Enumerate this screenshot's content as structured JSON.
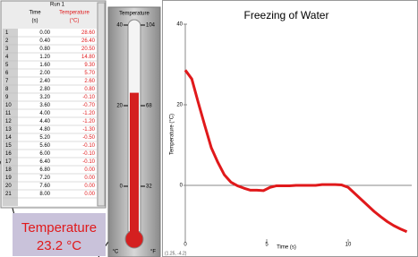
{
  "table": {
    "run": "Run 1",
    "columns": [
      {
        "name": "Time",
        "unit": "(s)"
      },
      {
        "name": "Temperature",
        "unit": "(°C)"
      }
    ],
    "rows": [
      [
        "1",
        "0.00",
        "28.60"
      ],
      [
        "2",
        "0.40",
        "26.40"
      ],
      [
        "3",
        "0.80",
        "20.50"
      ],
      [
        "4",
        "1.20",
        "14.80"
      ],
      [
        "5",
        "1.60",
        "9.30"
      ],
      [
        "6",
        "2.00",
        "5.70"
      ],
      [
        "7",
        "2.40",
        "2.60"
      ],
      [
        "8",
        "2.80",
        "0.80"
      ],
      [
        "9",
        "3.20",
        "-0.10"
      ],
      [
        "10",
        "3.60",
        "-0.70"
      ],
      [
        "11",
        "4.00",
        "-1.20"
      ],
      [
        "12",
        "4.40",
        "-1.20"
      ],
      [
        "13",
        "4.80",
        "-1.30"
      ],
      [
        "14",
        "5.20",
        "-0.50"
      ],
      [
        "15",
        "5.60",
        "-0.10"
      ],
      [
        "16",
        "6.00",
        "-0.10"
      ],
      [
        "17",
        "6.40",
        "-0.10"
      ],
      [
        "18",
        "6.80",
        "0.00"
      ],
      [
        "19",
        "7.20",
        "0.00"
      ],
      [
        "20",
        "7.60",
        "0.00"
      ],
      [
        "21",
        "8.00",
        "0.00"
      ]
    ]
  },
  "thermometer": {
    "title": "Temperature",
    "value": 23.2,
    "celsius_ticks": [
      40,
      20,
      0
    ],
    "fahrenheit_ticks": [
      104,
      68,
      32
    ],
    "units": [
      "°C",
      "°F"
    ]
  },
  "meter": {
    "label": "Temperature",
    "reading": "23.2 °C"
  },
  "chart_data": {
    "type": "line",
    "title": "Freezing of Water",
    "x_label": "Time (s)",
    "y_label": "Temperature (°C)",
    "x": [
      0,
      0.4,
      0.8,
      1.2,
      1.6,
      2,
      2.4,
      2.8,
      3.2,
      3.6,
      4,
      4.4,
      4.8,
      5.2,
      5.6,
      6,
      6.4,
      6.8,
      7.2,
      7.6,
      8,
      8.4,
      8.8,
      9.2,
      9.6,
      10,
      10.4,
      10.8,
      11.2,
      11.6,
      12,
      12.4,
      12.8,
      13.2,
      13.6
    ],
    "values": [
      28.6,
      26.4,
      20.5,
      14.8,
      9.3,
      5.7,
      2.6,
      0.8,
      -0.1,
      -0.7,
      -1.2,
      -1.2,
      -1.3,
      -0.5,
      -0.1,
      -0.1,
      -0.1,
      0,
      0,
      0,
      0,
      0.2,
      0.2,
      0.2,
      0.1,
      -0.5,
      -2,
      -3.5,
      -5,
      -6.5,
      -7.8,
      -9,
      -10,
      -10.8,
      -11.5
    ],
    "color": "#e0191b",
    "xlim": [
      0,
      13.9
    ],
    "ylim": [
      -14,
      40
    ],
    "xticks": [
      0,
      5,
      10
    ],
    "yticks": [
      0,
      20,
      40
    ],
    "readout": "(1.25, -4.2)"
  }
}
